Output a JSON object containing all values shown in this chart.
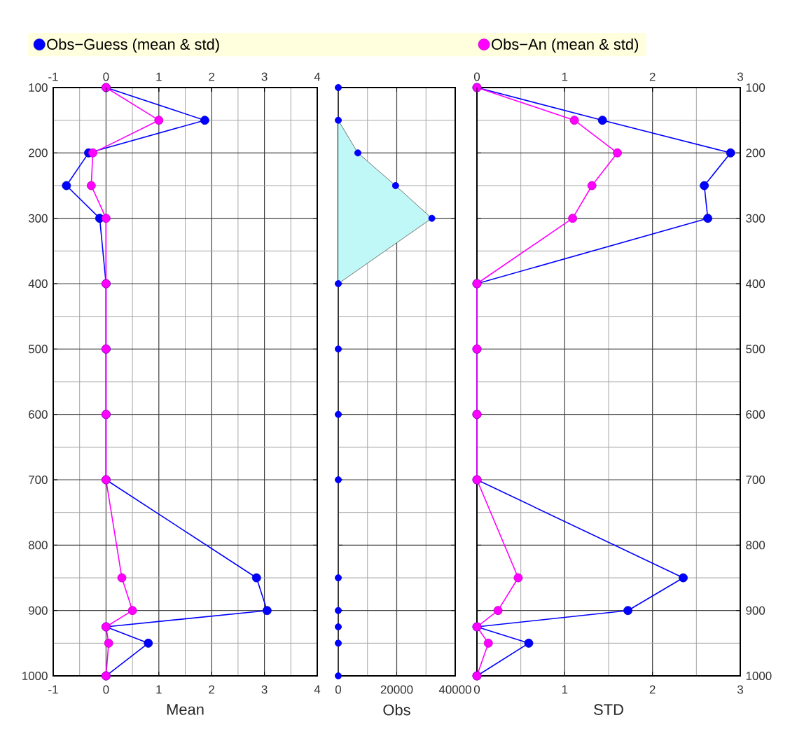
{
  "chart_data": [
    {
      "type": "line",
      "orientation": "horizontal",
      "xlabel": "Mean",
      "xlim": [
        -1,
        4
      ],
      "xticks": [
        -1,
        0,
        1,
        2,
        3,
        4
      ],
      "x2lim": [
        -1,
        4
      ],
      "x2ticks": [
        -1,
        0,
        1,
        2,
        3,
        4
      ],
      "ylim": [
        1000,
        100
      ],
      "yticks": [
        100,
        200,
        300,
        400,
        500,
        600,
        700,
        800,
        900,
        1000
      ],
      "grid": true,
      "marker": "circle",
      "legend": "top",
      "x": [
        100,
        150,
        200,
        250,
        300,
        400,
        500,
        600,
        700,
        850,
        900,
        925,
        950,
        1000
      ],
      "series": [
        {
          "name": "Obs−Guess (mean & std)",
          "color": "#0000ff",
          "values": [
            0,
            1.87,
            -0.33,
            -0.75,
            -0.12,
            0,
            0,
            0,
            0,
            2.85,
            3.05,
            0,
            0.8,
            0
          ]
        },
        {
          "name": "Obs−An (mean & std)",
          "color": "#ff00ff",
          "values": [
            0,
            1.0,
            -0.25,
            -0.28,
            0,
            0,
            0,
            0,
            0,
            0.3,
            0.5,
            0,
            0.05,
            0
          ]
        }
      ]
    },
    {
      "type": "area",
      "orientation": "horizontal",
      "xlabel": "Obs",
      "xlim": [
        0,
        40000
      ],
      "xticks": [
        0,
        20000,
        40000
      ],
      "ylim": [
        1000,
        100
      ],
      "yticks": [
        100,
        200,
        300,
        400,
        500,
        600,
        700,
        800,
        900,
        1000
      ],
      "grid": true,
      "marker": "circle",
      "tick_labels": "x",
      "x": [
        100,
        150,
        200,
        250,
        300,
        400,
        500,
        600,
        700,
        850,
        900,
        925,
        950,
        1000
      ],
      "series": [
        {
          "color": "#c0f8f8",
          "values": [
            0,
            0,
            6700,
            19600,
            32000,
            0,
            0,
            0,
            0,
            0,
            0,
            0,
            0,
            0
          ]
        }
      ]
    },
    {
      "type": "line",
      "orientation": "horizontal",
      "xlabel": "STD",
      "xlim": [
        0,
        3
      ],
      "xticks": [
        0,
        1,
        2,
        3
      ],
      "x2lim": [
        0,
        3
      ],
      "x2ticks": [
        0,
        1,
        2,
        3
      ],
      "ylim": [
        1000,
        100
      ],
      "yticks": [
        100,
        200,
        300,
        400,
        500,
        600,
        700,
        800,
        900,
        1000
      ],
      "grid": true,
      "marker": "circle",
      "x": [
        100,
        150,
        200,
        250,
        300,
        400,
        500,
        600,
        700,
        850,
        900,
        925,
        950,
        1000
      ],
      "series": [
        {
          "color": "#0000ff",
          "values": [
            0,
            1.43,
            2.89,
            2.59,
            2.63,
            0,
            0,
            0,
            0,
            2.35,
            1.72,
            0,
            0.59,
            0
          ]
        },
        {
          "color": "#ff00ff",
          "values": [
            0,
            1.11,
            1.6,
            1.31,
            1.09,
            0,
            0,
            0,
            0,
            0.47,
            0.24,
            0,
            0.13,
            0
          ]
        }
      ]
    }
  ]
}
